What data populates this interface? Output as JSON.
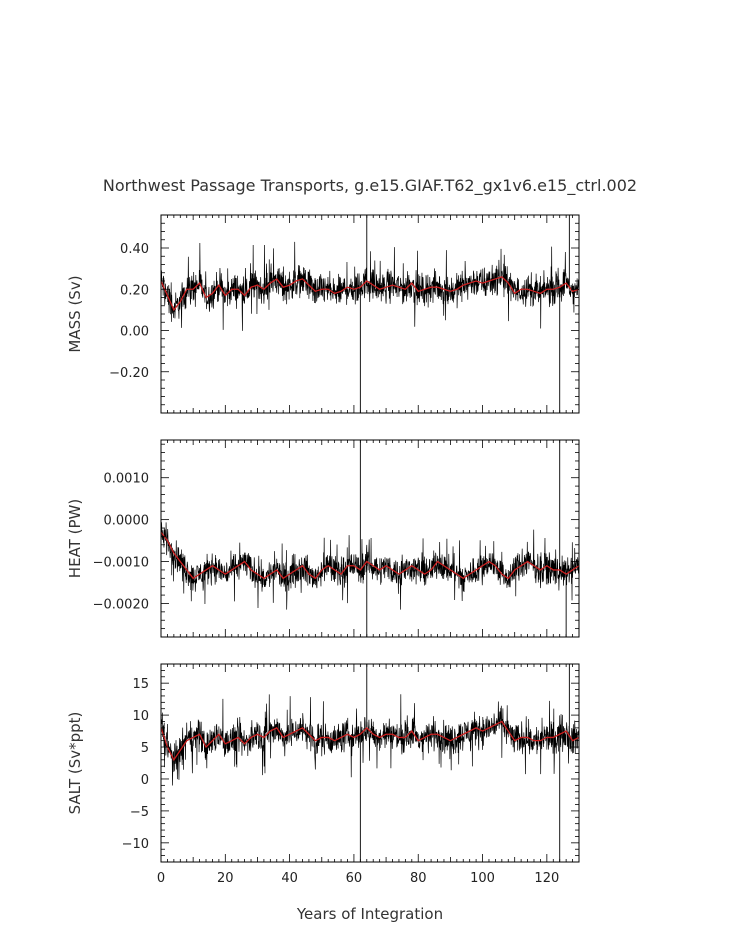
{
  "chart_data": {
    "type": "line",
    "title": "Northwest Passage Transports, g.e15.GIAF.T62_gx1v6.e15_ctrl.002",
    "xlabel": "Years of Integration",
    "xlim": [
      0,
      130
    ],
    "x_ticks": [
      0,
      20,
      40,
      60,
      80,
      100,
      120
    ],
    "x_tick_labels": [
      "0",
      "20",
      "40",
      "60",
      "80",
      "100",
      "120"
    ],
    "series_colors": {
      "monthly": "#000000",
      "smoothed": "#cc2020"
    },
    "panels": [
      {
        "ylabel": "MASS (Sv)",
        "ylim": [
          -0.4,
          0.56
        ],
        "y_ticks": [
          -0.2,
          0.0,
          0.2,
          0.4
        ],
        "y_tick_labels": [
          "−0.20",
          "0.00",
          "0.20",
          "0.40"
        ],
        "smoothed_years": [
          0,
          2,
          4,
          6,
          8,
          10,
          12,
          14,
          16,
          18,
          20,
          22,
          24,
          26,
          28,
          30,
          32,
          34,
          36,
          38,
          40,
          42,
          44,
          46,
          48,
          50,
          52,
          54,
          56,
          58,
          60,
          62,
          64,
          66,
          68,
          70,
          72,
          74,
          76,
          78,
          80,
          82,
          84,
          86,
          88,
          90,
          92,
          94,
          96,
          98,
          100,
          102,
          104,
          106,
          108,
          110,
          112,
          114,
          116,
          118,
          120,
          122,
          124,
          126,
          128,
          130
        ],
        "smoothed": [
          0.24,
          0.17,
          0.1,
          0.14,
          0.2,
          0.2,
          0.23,
          0.16,
          0.18,
          0.22,
          0.17,
          0.2,
          0.2,
          0.17,
          0.21,
          0.22,
          0.2,
          0.23,
          0.25,
          0.21,
          0.22,
          0.24,
          0.25,
          0.22,
          0.19,
          0.2,
          0.2,
          0.18,
          0.19,
          0.21,
          0.2,
          0.21,
          0.24,
          0.22,
          0.2,
          0.21,
          0.22,
          0.21,
          0.2,
          0.23,
          0.19,
          0.2,
          0.21,
          0.21,
          0.2,
          0.19,
          0.2,
          0.22,
          0.23,
          0.24,
          0.23,
          0.24,
          0.25,
          0.26,
          0.23,
          0.18,
          0.2,
          0.2,
          0.19,
          0.18,
          0.2,
          0.2,
          0.21,
          0.23,
          0.19,
          0.2
        ],
        "spikes": [
          {
            "year": 62,
            "value": -0.4
          },
          {
            "year": 64,
            "value": 0.56
          },
          {
            "year": 124,
            "value": -0.4
          },
          {
            "year": 127,
            "value": 0.56
          }
        ],
        "noise_amplitude": 0.11
      },
      {
        "ylabel": "HEAT (PW)",
        "ylim": [
          -0.0028,
          0.0019
        ],
        "y_ticks": [
          -0.002,
          -0.001,
          0.0,
          0.001
        ],
        "y_tick_labels": [
          "−0.0020",
          "−0.0010",
          "0.0000",
          "0.0010"
        ],
        "smoothed_years": [
          0,
          2,
          4,
          6,
          8,
          10,
          12,
          14,
          16,
          18,
          20,
          22,
          24,
          26,
          28,
          30,
          32,
          34,
          36,
          38,
          40,
          42,
          44,
          46,
          48,
          50,
          52,
          54,
          56,
          58,
          60,
          62,
          64,
          66,
          68,
          70,
          72,
          74,
          76,
          78,
          80,
          82,
          84,
          86,
          88,
          90,
          92,
          94,
          96,
          98,
          100,
          102,
          104,
          106,
          108,
          110,
          112,
          114,
          116,
          118,
          120,
          122,
          124,
          126,
          128,
          130
        ],
        "smoothed": [
          -0.0003,
          -0.0005,
          -0.0008,
          -0.001,
          -0.0012,
          -0.0014,
          -0.0013,
          -0.0012,
          -0.0011,
          -0.0012,
          -0.0013,
          -0.0012,
          -0.0011,
          -0.001,
          -0.0012,
          -0.0013,
          -0.0014,
          -0.0013,
          -0.0012,
          -0.0014,
          -0.0013,
          -0.0012,
          -0.0011,
          -0.0013,
          -0.0014,
          -0.0012,
          -0.0011,
          -0.0012,
          -0.0013,
          -0.0011,
          -0.0011,
          -0.0012,
          -0.001,
          -0.0011,
          -0.0012,
          -0.0011,
          -0.0012,
          -0.0013,
          -0.0012,
          -0.0011,
          -0.0012,
          -0.0013,
          -0.0012,
          -0.001,
          -0.0011,
          -0.0012,
          -0.0013,
          -0.0014,
          -0.0013,
          -0.0012,
          -0.0011,
          -0.001,
          -0.0011,
          -0.0013,
          -0.0014,
          -0.0012,
          -0.0011,
          -0.001,
          -0.0011,
          -0.0012,
          -0.0011,
          -0.0012,
          -0.0012,
          -0.0013,
          -0.0012,
          -0.0011
        ],
        "spikes": [
          {
            "year": 62,
            "value": 0.0019
          },
          {
            "year": 64,
            "value": -0.0028
          },
          {
            "year": 124,
            "value": 0.0019
          },
          {
            "year": 126,
            "value": -0.0028
          }
        ],
        "noise_amplitude": 0.0005
      },
      {
        "ylabel": "SALT (Sv*ppt)",
        "ylim": [
          -13,
          18
        ],
        "y_ticks": [
          -10,
          -5,
          0,
          5,
          10,
          15
        ],
        "y_tick_labels": [
          "−10",
          "−5",
          "0",
          "5",
          "10",
          "15"
        ],
        "smoothed_years": [
          0,
          2,
          4,
          6,
          8,
          10,
          12,
          14,
          16,
          18,
          20,
          22,
          24,
          26,
          28,
          30,
          32,
          34,
          36,
          38,
          40,
          42,
          44,
          46,
          48,
          50,
          52,
          54,
          56,
          58,
          60,
          62,
          64,
          66,
          68,
          70,
          72,
          74,
          76,
          78,
          80,
          82,
          84,
          86,
          88,
          90,
          92,
          94,
          96,
          98,
          100,
          102,
          104,
          106,
          108,
          110,
          112,
          114,
          116,
          118,
          120,
          122,
          124,
          126,
          128,
          130
        ],
        "smoothed": [
          8,
          5,
          3,
          4.5,
          6,
          6.5,
          7,
          5,
          6,
          7,
          5.5,
          6,
          6.5,
          5.5,
          6.5,
          7,
          6.5,
          7.5,
          8,
          6.5,
          7,
          7.5,
          8,
          7,
          6,
          6.5,
          6.5,
          6,
          6.5,
          7,
          6.5,
          7,
          8,
          7,
          6.5,
          7,
          7,
          6.5,
          6.5,
          7.5,
          6,
          6.5,
          7,
          7,
          6.5,
          6,
          6.5,
          7,
          7.5,
          8,
          7.5,
          8,
          8.5,
          9,
          7.5,
          6,
          6.5,
          6.5,
          6,
          6,
          6.5,
          6.5,
          7,
          7.5,
          6,
          6.5
        ],
        "spikes": [
          {
            "year": 62,
            "value": -13
          },
          {
            "year": 64,
            "value": 18
          },
          {
            "year": 124,
            "value": -13
          },
          {
            "year": 127,
            "value": 18
          }
        ],
        "noise_amplitude": 3.6
      }
    ]
  }
}
